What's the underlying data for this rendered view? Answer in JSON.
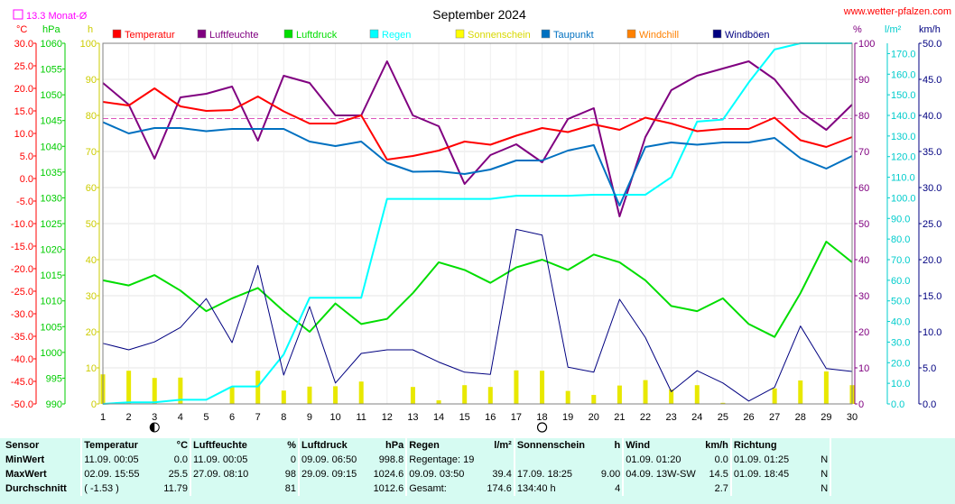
{
  "header": {
    "title": "September 2024",
    "site": "www.wetter-pfalzen.com",
    "avg_label": "13.3 Monat-Ø"
  },
  "axis_units": {
    "temp": "°C",
    "press": "hPa",
    "sun": "h",
    "hum": "%",
    "rain": "l/m²",
    "wind": "km/h"
  },
  "legend": [
    {
      "label": "Temperatur",
      "color": "#ff0000"
    },
    {
      "label": "Luftfeuchte",
      "color": "#800080"
    },
    {
      "label": "Luftdruck",
      "color": "#00dd00"
    },
    {
      "label": "Regen",
      "color": "#00ffff"
    },
    {
      "label": "Sonnenschein",
      "color": "#ffff00"
    },
    {
      "label": "Taupunkt",
      "color": "#0070c0"
    },
    {
      "label": "Windchill",
      "color": "#ff8000"
    },
    {
      "label": "Windböen",
      "color": "#000080"
    }
  ],
  "moon_days": [
    3,
    18
  ],
  "chart_data": {
    "type": "line",
    "title": "September 2024",
    "x": [
      1,
      2,
      3,
      4,
      5,
      6,
      7,
      8,
      9,
      10,
      11,
      12,
      13,
      14,
      15,
      16,
      17,
      18,
      19,
      20,
      21,
      22,
      23,
      24,
      25,
      26,
      27,
      28,
      29,
      30
    ],
    "xlim": [
      1,
      30
    ],
    "axes": {
      "temp": {
        "unit": "°C",
        "range": [
          -50,
          30
        ],
        "ticks": [
          "30.0",
          "25.0",
          "20.0",
          "15.0",
          "10.0",
          "5.0",
          "0.0",
          "-5.0",
          "-10.0",
          "-15.0",
          "-20.0",
          "-25.0",
          "-30.0",
          "-35.0",
          "-40.0",
          "-45.0",
          "-50.0"
        ]
      },
      "press": {
        "unit": "hPa",
        "range": [
          990,
          1060
        ],
        "ticks": [
          "1060",
          "1055",
          "1050",
          "1045",
          "1040",
          "1035",
          "1030",
          "1025",
          "1020",
          "1015",
          "1010",
          "1005",
          "1000",
          "995",
          "990"
        ]
      },
      "sun": {
        "unit": "h",
        "range": [
          0,
          100
        ],
        "ticks": [
          "100",
          "90",
          "80",
          "70",
          "60",
          "50",
          "40",
          "30",
          "20",
          "10",
          "0"
        ]
      },
      "hum": {
        "unit": "%",
        "range": [
          0,
          100
        ],
        "ticks": [
          "100",
          "90",
          "80",
          "70",
          "60",
          "50",
          "40",
          "30",
          "20",
          "10",
          "0"
        ]
      },
      "rain": {
        "unit": "l/m²",
        "range": [
          0,
          175
        ],
        "ticks": [
          "170.0",
          "160.0",
          "150.0",
          "140.0",
          "130.0",
          "120.0",
          "110.0",
          "100.0",
          "90.0",
          "80.0",
          "70.0",
          "60.0",
          "50.0",
          "40.0",
          "30.0",
          "20.0",
          "10.0",
          "0.0"
        ]
      },
      "wind": {
        "unit": "km/h",
        "range": [
          0,
          50
        ],
        "ticks": [
          "50.0",
          "45.0",
          "40.0",
          "35.0",
          "30.0",
          "25.0",
          "20.0",
          "15.0",
          "10.0",
          "5.0",
          "0.0"
        ]
      }
    },
    "reference_line": {
      "name": "13.3 Monat-Ø",
      "value": 13.3,
      "axis": "temp"
    },
    "series": [
      {
        "name": "Luftfeuchte",
        "axis": "hum",
        "color": "#800080",
        "values": [
          89,
          83,
          68,
          85,
          86,
          88,
          73,
          91,
          89,
          80,
          80,
          95,
          80,
          77,
          61,
          69,
          72,
          67,
          79,
          82,
          52,
          74,
          87,
          91,
          93,
          95,
          90,
          81,
          76,
          83
        ]
      },
      {
        "name": "Luftdruck",
        "axis": "press",
        "color": "#00dd00",
        "values": [
          1014,
          1013,
          1015,
          1012,
          1008,
          1010.5,
          1012.5,
          1008,
          1004,
          1009.5,
          1005.5,
          1006.5,
          1011.5,
          1017.5,
          1016,
          1013.5,
          1016.5,
          1018,
          1016,
          1019,
          1017.5,
          1014,
          1009,
          1008,
          1010.5,
          1005.5,
          1003,
          1011.5,
          1021.5,
          1017.5
        ]
      },
      {
        "name": "Regen",
        "axis": "rain",
        "color": "#00ffff",
        "values": [
          0,
          0.8,
          0.8,
          2,
          2,
          8.5,
          8.5,
          24,
          51.5,
          51.5,
          51.5,
          99.5,
          99.5,
          99.5,
          99.5,
          99.5,
          101,
          101,
          101,
          101.5,
          101.5,
          101.5,
          110,
          137,
          138,
          156,
          172,
          175,
          175,
          175
        ]
      },
      {
        "name": "Taupunkt",
        "axis": "temp",
        "color": "#0070c0",
        "values": [
          12.5,
          10.0,
          11.2,
          11.2,
          10.5,
          11.0,
          11.0,
          11.0,
          8.2,
          7.2,
          8.2,
          3.5,
          1.5,
          1.6,
          1.0,
          2.0,
          4.0,
          4.0,
          6.2,
          7.4,
          -6.0,
          7.0,
          8.0,
          7.5,
          8.0,
          8.0,
          9.0,
          4.5,
          2.2,
          5.0
        ]
      },
      {
        "name": "Temperatur",
        "axis": "temp",
        "color": "#ff0000",
        "values": [
          17.0,
          16.2,
          20.0,
          16.0,
          15.0,
          15.2,
          18.2,
          14.9,
          12.2,
          12.2,
          14.0,
          4.2,
          5.0,
          6.2,
          8.2,
          7.5,
          9.5,
          11.2,
          10.3,
          12.0,
          10.8,
          13.5,
          12.2,
          10.5,
          11.0,
          11.0,
          13.5,
          8.5,
          7.0,
          9.2
        ]
      },
      {
        "name": "Windböen",
        "axis": "wind",
        "color": "#000080",
        "values": [
          8.4,
          7.5,
          8.6,
          10.6,
          14.6,
          8.5,
          19.2,
          4,
          13.5,
          2.9,
          7,
          7.5,
          7.5,
          5.8,
          4.4,
          4.1,
          24.2,
          23.4,
          5.1,
          4.4,
          14.5,
          9.2,
          1.7,
          4.6,
          2.9,
          0.4,
          2.3,
          10.8,
          4.9,
          4.5
        ]
      },
      {
        "name": "Sonnenschein",
        "axis": "sun",
        "color": "#e8e800",
        "type": "bar",
        "values": [
          8.2,
          9.2,
          7.2,
          7.3,
          0,
          4.8,
          9.2,
          3.7,
          4.8,
          4.9,
          6.2,
          0.1,
          4.7,
          1.0,
          5.2,
          4.7,
          9.3,
          9.2,
          3.6,
          2.5,
          5.1,
          6.6,
          4.0,
          5.2,
          0.3,
          0,
          4.3,
          6.5,
          9.0,
          5.2
        ]
      }
    ]
  },
  "stats": {
    "row_labels": [
      "Sensor",
      "MinWert",
      "MaxWert",
      "Durchschnitt"
    ],
    "columns": [
      {
        "name": "Temperatur",
        "unit": "°C",
        "min_time": "11.09.  00:05",
        "min_val": "0.0",
        "max_time": "02.09.  15:55",
        "max_val": "25.5",
        "avg_pre": "( -1.53 )",
        "avg_val": "11.79"
      },
      {
        "name": "Luftfeuchte",
        "unit": "%",
        "min_time": "11.09.  00:05",
        "min_val": "0",
        "max_time": "27.09.  08:10",
        "max_val": "98",
        "avg_pre": "",
        "avg_val": "81"
      },
      {
        "name": "Luftdruck",
        "unit": "hPa",
        "min_time": "09.09.  06:50",
        "min_val": "998.8",
        "max_time": "29.09.  09:15",
        "max_val": "1024.6",
        "avg_pre": "",
        "avg_val": "1012.6"
      },
      {
        "name": "Regen",
        "unit": "l/m²",
        "min_time": "Regentage: 19",
        "min_val": "",
        "max_time": "09.09.  03:50",
        "max_val": "39.4",
        "avg_pre": "Gesamt:",
        "avg_val": "174.6"
      },
      {
        "name": "Sonnenschein",
        "unit": "h",
        "min_time": "",
        "min_val": "",
        "max_time": "17.09.  18:25",
        "max_val": "9.00",
        "avg_pre": "134:40 h",
        "avg_val": "4"
      },
      {
        "name": "Wind",
        "unit": "km/h",
        "min_time": "01.09.  01:20",
        "min_val": "0.0",
        "max_time": "04.09.  13W-SW",
        "max_val": "14.5",
        "avg_pre": "",
        "avg_val": "2.7"
      },
      {
        "name": "Richtung",
        "unit": "",
        "min_time": "01.09.  01:25",
        "min_val": "N",
        "max_time": "01.09.  18:45",
        "max_val": "N",
        "avg_pre": "",
        "avg_val": "N"
      }
    ]
  }
}
